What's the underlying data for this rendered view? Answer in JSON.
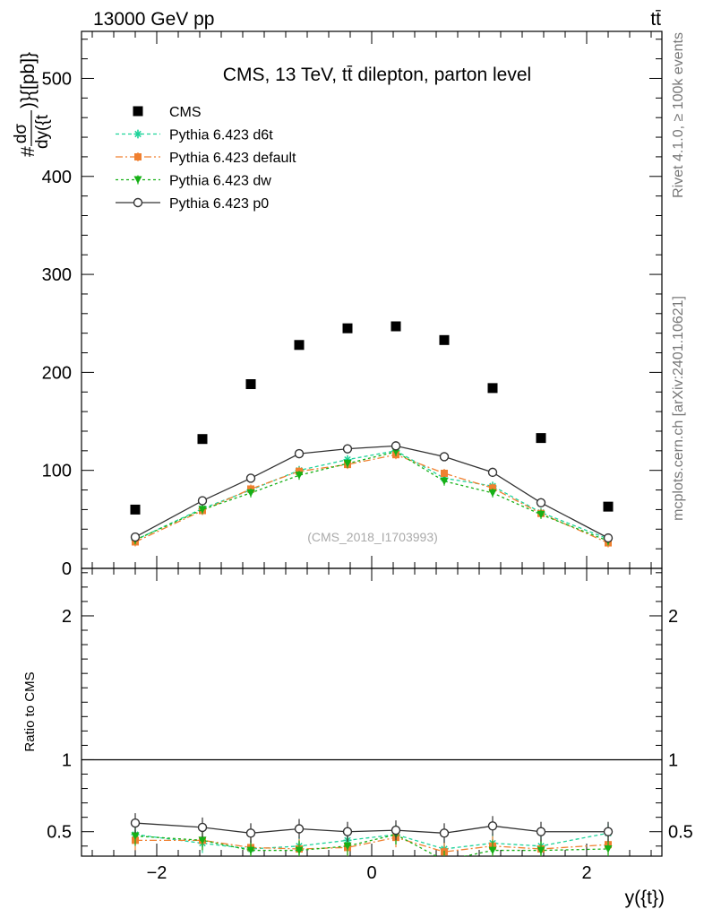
{
  "header": {
    "left_label": "13000 GeV pp",
    "right_label": "tt̄"
  },
  "side_text": {
    "rivet": "Rivet 4.1.0, ≥ 100k events",
    "mcplots": "mcplots.cern.ch [arXiv:2401.10621]"
  },
  "colors": {
    "cms": "#000000",
    "d6t": "#1ed39a",
    "default": "#f08030",
    "dw": "#16b016",
    "p0": "#333333"
  },
  "chart_data": [
    {
      "type": "scatter",
      "title": "CMS, 13 TeV, tt̄ dilepton, parton level",
      "watermark": "(CMS_2018_I1703993)",
      "ylabel": "#dσ/dy({t})]{[pb]}",
      "ylabel_num": "dσ",
      "ylabel_den": "dy({t",
      "ylabel_prefix": "#",
      "ylabel_suffix": ")}{[pb]}",
      "xlabel": "",
      "xlim": [
        -2.7,
        2.7
      ],
      "ylim": [
        0,
        548
      ],
      "yticks": [
        0,
        100,
        200,
        300,
        400,
        500
      ],
      "ytick_labels": [
        "0",
        "100",
        "200",
        "300",
        "400",
        "500"
      ],
      "x": [
        -2.2,
        -1.575,
        -1.125,
        -0.675,
        -0.225,
        0.225,
        0.675,
        1.125,
        1.575,
        2.2
      ],
      "series": [
        {
          "name": "CMS",
          "key": "cms",
          "values": [
            60,
            132,
            188,
            228,
            245,
            247,
            233,
            184,
            133,
            63
          ]
        },
        {
          "name": "Pythia 6.423 d6t",
          "key": "d6t",
          "values": [
            29,
            61,
            80,
            100,
            111,
            120,
            92,
            84,
            57,
            30
          ]
        },
        {
          "name": "Pythia 6.423 default",
          "key": "default",
          "values": [
            27,
            59,
            81,
            99,
            106,
            116,
            97,
            82,
            56,
            26
          ]
        },
        {
          "name": "Pythia 6.423 dw",
          "key": "dw",
          "values": [
            29,
            60,
            77,
            95,
            107,
            119,
            89,
            77,
            55,
            28
          ]
        },
        {
          "name": "Pythia 6.423 p0",
          "key": "p0",
          "values": [
            32,
            69,
            92,
            117,
            122,
            125,
            114,
            98,
            67,
            31
          ]
        }
      ]
    },
    {
      "type": "line",
      "title": "",
      "xlabel": "y({t})",
      "ylabel": "Ratio to CMS",
      "xlim": [
        -2.7,
        2.7
      ],
      "ylim": [
        0.33,
        2.33
      ],
      "yticks": [
        0.5,
        1,
        2
      ],
      "ytick_labels": [
        "0.5",
        "1",
        "2"
      ],
      "xticks": [
        -2,
        0,
        2
      ],
      "xtick_labels": [
        "−2",
        "0",
        "2"
      ],
      "x": [
        -2.2,
        -1.575,
        -1.125,
        -0.675,
        -0.225,
        0.225,
        0.675,
        1.125,
        1.575,
        2.2
      ],
      "series": [
        {
          "name": "Pythia 6.423 d6t",
          "key": "d6t",
          "values": [
            0.48,
            0.42,
            0.38,
            0.4,
            0.44,
            0.48,
            0.38,
            0.42,
            0.4,
            0.49
          ]
        },
        {
          "name": "Pythia 6.423 default",
          "key": "default",
          "values": [
            0.44,
            0.44,
            0.39,
            0.38,
            0.39,
            0.46,
            0.36,
            0.4,
            0.38,
            0.41
          ]
        },
        {
          "name": "Pythia 6.423 dw",
          "key": "dw",
          "values": [
            0.47,
            0.44,
            0.37,
            0.37,
            0.4,
            0.48,
            0.3,
            0.37,
            0.37,
            0.38
          ]
        },
        {
          "name": "Pythia 6.423 p0",
          "key": "p0",
          "values": [
            0.56,
            0.53,
            0.49,
            0.52,
            0.5,
            0.51,
            0.49,
            0.54,
            0.5,
            0.5
          ]
        }
      ]
    }
  ]
}
